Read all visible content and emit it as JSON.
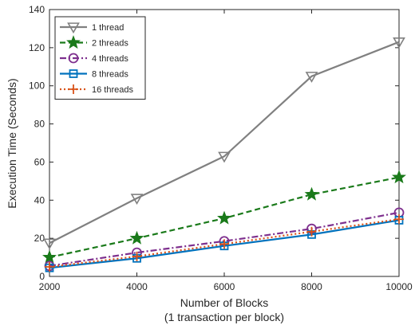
{
  "chart_data": {
    "type": "line",
    "xlabel": "Number of Blocks",
    "xlabel_line2": "(1 transaction per block)",
    "ylabel": "Execution Time (Seconds)",
    "x": [
      2000,
      4000,
      6000,
      8000,
      10000
    ],
    "xlim": [
      2000,
      10000
    ],
    "ylim": [
      0,
      140
    ],
    "xticks": [
      2000,
      4000,
      6000,
      8000,
      10000
    ],
    "yticks": [
      0,
      20,
      40,
      60,
      80,
      100,
      120,
      140
    ],
    "grid": false,
    "legend_position": "top-left",
    "series": [
      {
        "name": "1 thread",
        "color": "#808080",
        "dash": "solid",
        "marker": "triangle-down",
        "values": [
          17.5,
          41,
          63,
          105,
          123
        ]
      },
      {
        "name": "2 threads",
        "color": "#1a7a1a",
        "dash": "dashed",
        "marker": "star",
        "values": [
          10,
          20,
          30.5,
          43,
          52
        ]
      },
      {
        "name": "4 threads",
        "color": "#7e2f8e",
        "dash": "dashdot",
        "marker": "circle",
        "values": [
          5.5,
          12.5,
          18.5,
          25,
          33.5
        ]
      },
      {
        "name": "8 threads",
        "color": "#0072bd",
        "dash": "solid",
        "marker": "square",
        "values": [
          4.5,
          9.5,
          16,
          22,
          29.5
        ]
      },
      {
        "name": "16 threads",
        "color": "#d95319",
        "dash": "dotted",
        "marker": "plus",
        "values": [
          5,
          10.5,
          17,
          23.5,
          30
        ]
      }
    ]
  }
}
